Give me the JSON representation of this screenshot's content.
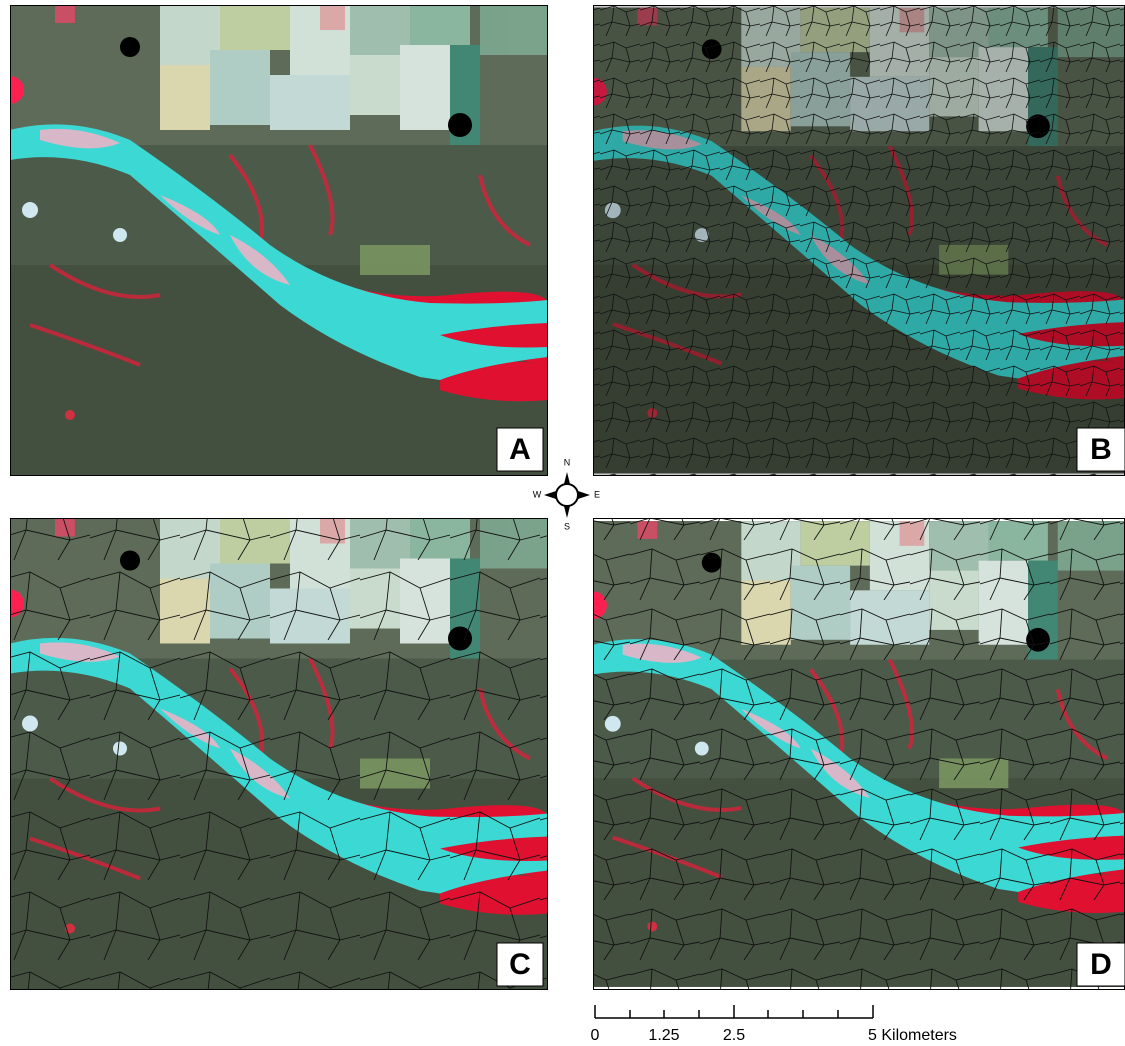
{
  "panels": [
    {
      "label": "A"
    },
    {
      "label": "B"
    },
    {
      "label": "C"
    },
    {
      "label": "D"
    }
  ],
  "compass": {
    "north": "N",
    "south": "S",
    "east": "E",
    "west": "W"
  },
  "scale_bar": {
    "labels": [
      "0",
      "1.25",
      "2.5",
      "5 Kilometers"
    ]
  }
}
